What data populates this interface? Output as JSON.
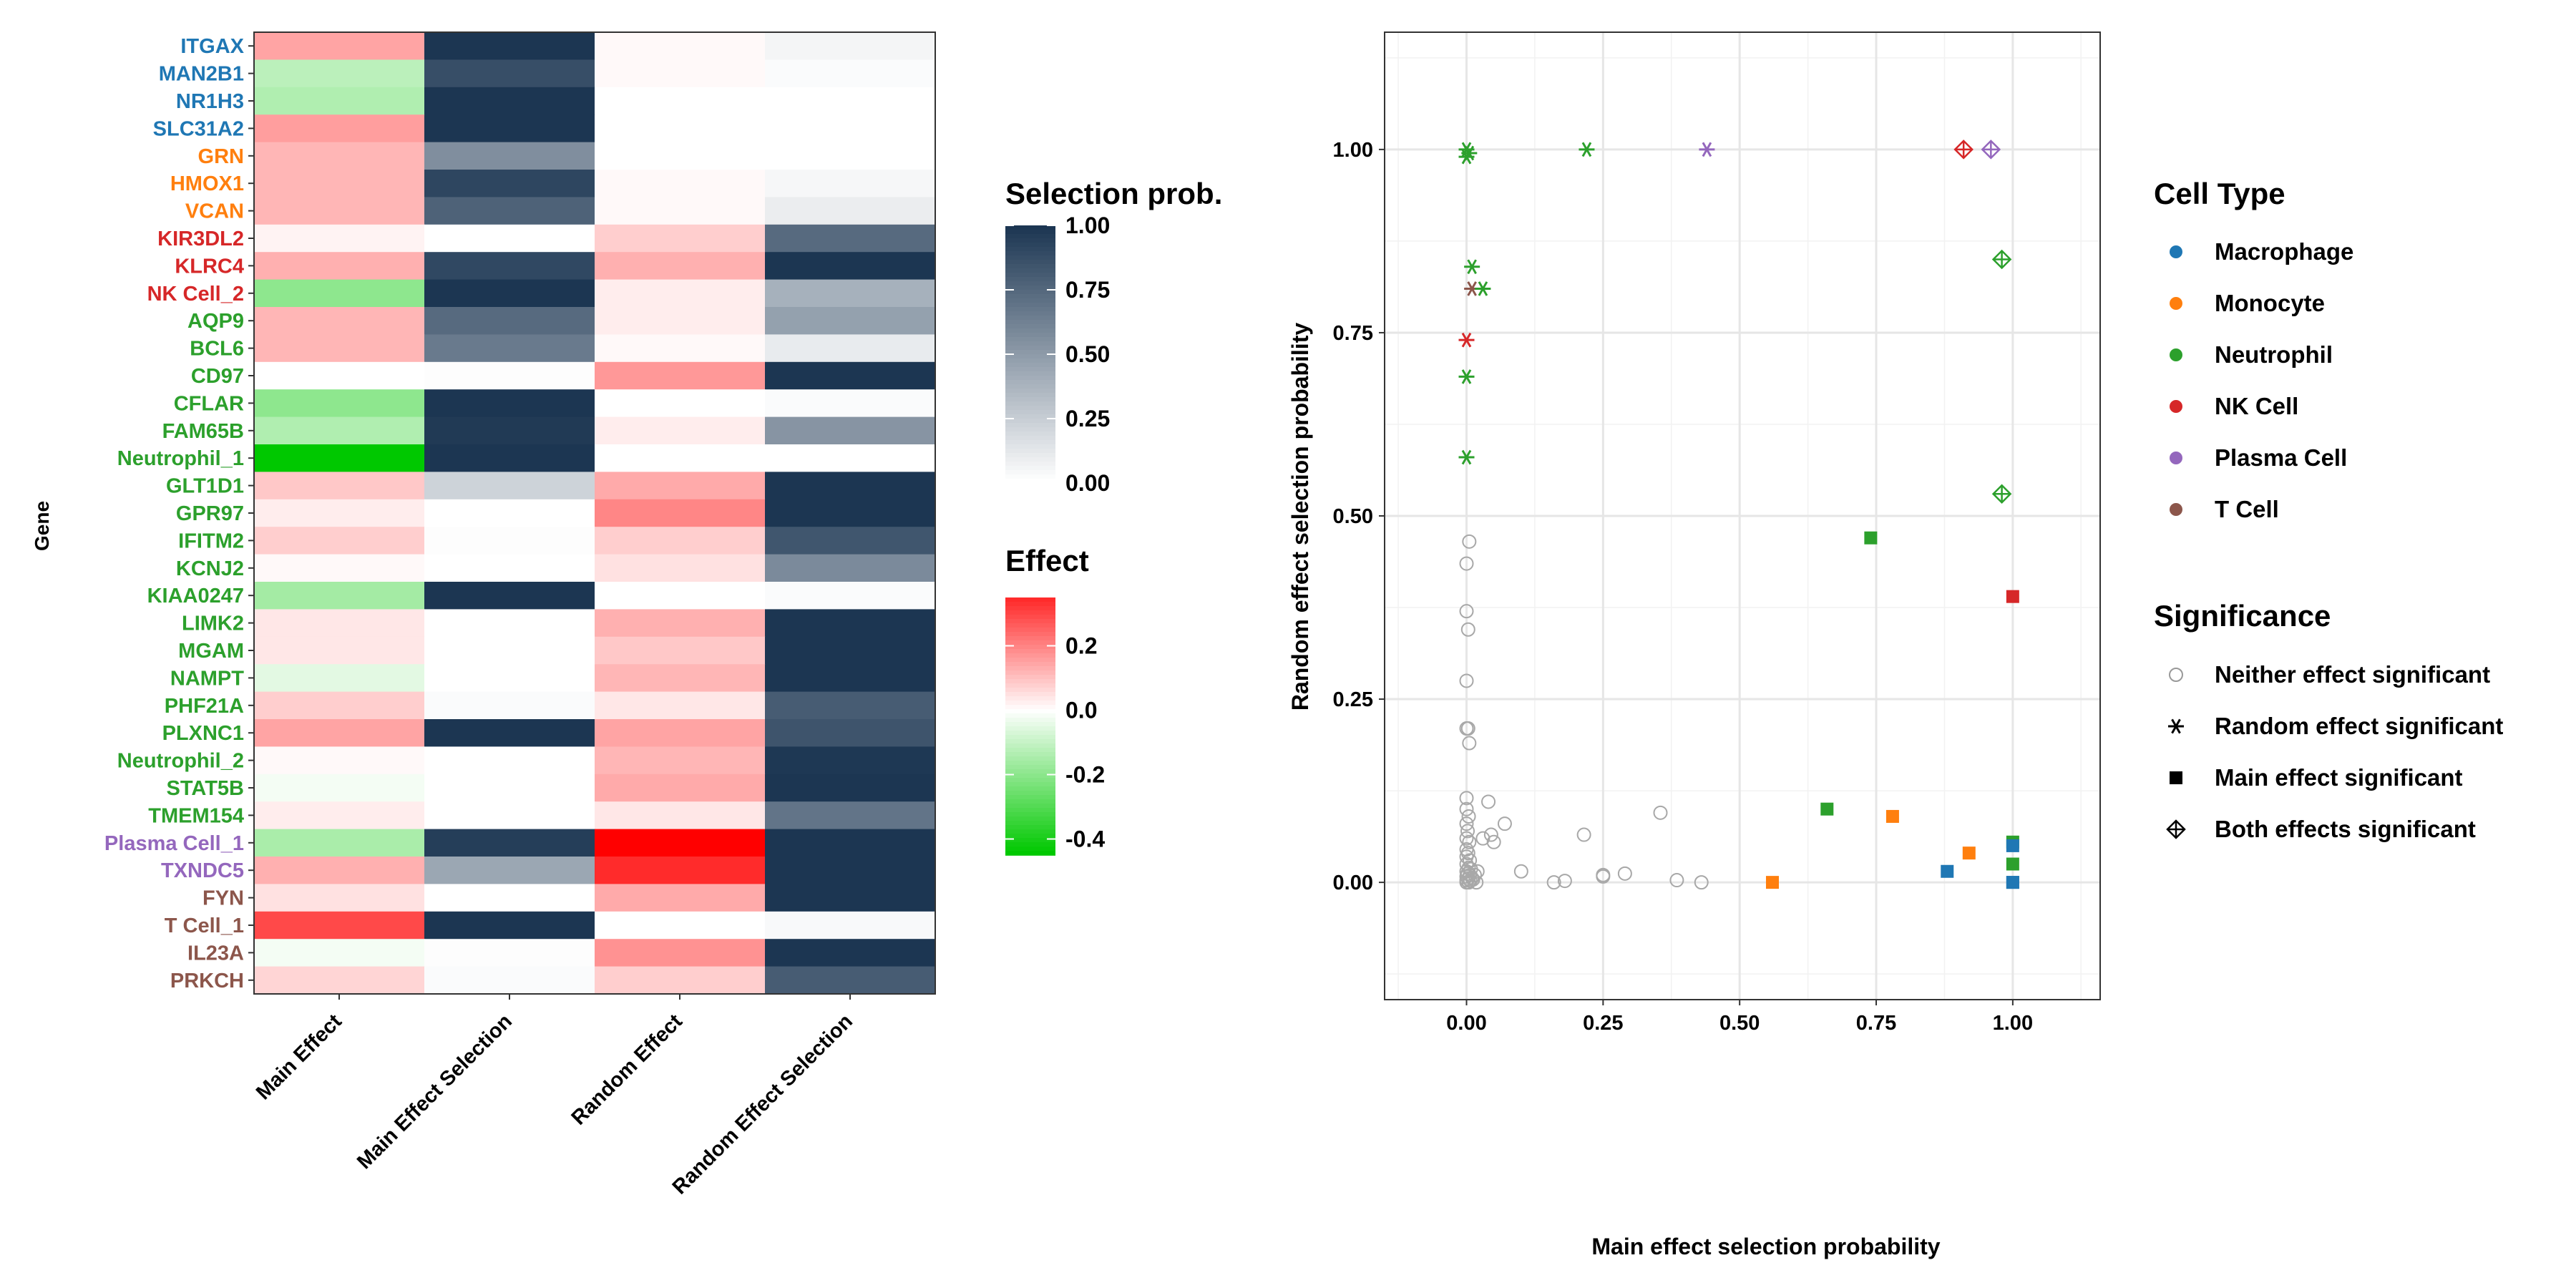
{
  "chart_data": [
    {
      "type": "heatmap",
      "ylabel": "Gene",
      "columns": [
        "Main Effect",
        "Main Effect Selection",
        "Random Effect",
        "Random Effect Selection"
      ],
      "rows": [
        {
          "gene": "ITGAX",
          "cell_type": "Macrophage",
          "main_effect": 0.15,
          "main_sel": 1.0,
          "rand_effect": 0.01,
          "rand_sel": 0.05
        },
        {
          "gene": "MAN2B1",
          "cell_type": "Macrophage",
          "main_effect": -0.12,
          "main_sel": 0.88,
          "rand_effect": 0.01,
          "rand_sel": 0.02
        },
        {
          "gene": "NR1H3",
          "cell_type": "Macrophage",
          "main_effect": -0.14,
          "main_sel": 1.0,
          "rand_effect": 0.0,
          "rand_sel": 0.0
        },
        {
          "gene": "SLC31A2",
          "cell_type": "Macrophage",
          "main_effect": 0.16,
          "main_sel": 1.0,
          "rand_effect": 0.0,
          "rand_sel": 0.0
        },
        {
          "gene": "GRN",
          "cell_type": "Monocyte",
          "main_effect": 0.12,
          "main_sel": 0.56,
          "rand_effect": 0.0,
          "rand_sel": 0.0
        },
        {
          "gene": "HMOX1",
          "cell_type": "Monocyte",
          "main_effect": 0.12,
          "main_sel": 0.92,
          "rand_effect": 0.01,
          "rand_sel": 0.04
        },
        {
          "gene": "VCAN",
          "cell_type": "Monocyte",
          "main_effect": 0.12,
          "main_sel": 0.78,
          "rand_effect": 0.01,
          "rand_sel": 0.09
        },
        {
          "gene": "KIR3DL2",
          "cell_type": "NK Cell",
          "main_effect": 0.02,
          "main_sel": 0.0,
          "rand_effect": 0.08,
          "rand_sel": 0.74
        },
        {
          "gene": "KLRC4",
          "cell_type": "NK Cell",
          "main_effect": 0.13,
          "main_sel": 0.91,
          "rand_effect": 0.13,
          "rand_sel": 1.0
        },
        {
          "gene": "NK Cell_2",
          "cell_type": "NK Cell",
          "main_effect": -0.2,
          "main_sel": 1.0,
          "rand_effect": 0.03,
          "rand_sel": 0.39
        },
        {
          "gene": "AQP9",
          "cell_type": "Neutrophil",
          "main_effect": 0.12,
          "main_sel": 0.74,
          "rand_effect": 0.03,
          "rand_sel": 0.47
        },
        {
          "gene": "BCL6",
          "cell_type": "Neutrophil",
          "main_effect": 0.12,
          "main_sel": 0.66,
          "rand_effect": 0.01,
          "rand_sel": 0.1
        },
        {
          "gene": "CD97",
          "cell_type": "Neutrophil",
          "main_effect": 0.0,
          "main_sel": 0.01,
          "rand_effect": 0.17,
          "rand_sel": 1.0
        },
        {
          "gene": "CFLAR",
          "cell_type": "Neutrophil",
          "main_effect": -0.2,
          "main_sel": 1.0,
          "rand_effect": 0.0,
          "rand_sel": 0.02
        },
        {
          "gene": "FAM65B",
          "cell_type": "Neutrophil",
          "main_effect": -0.14,
          "main_sel": 0.98,
          "rand_effect": 0.03,
          "rand_sel": 0.53
        },
        {
          "gene": "Neutrophil_1",
          "cell_type": "Neutrophil",
          "main_effect": -0.45,
          "main_sel": 1.0,
          "rand_effect": 0.0,
          "rand_sel": 0.0
        },
        {
          "gene": "GLT1D1",
          "cell_type": "Neutrophil",
          "main_effect": 0.09,
          "main_sel": 0.22,
          "rand_effect": 0.14,
          "rand_sel": 1.0
        },
        {
          "gene": "GPR97",
          "cell_type": "Neutrophil",
          "main_effect": 0.03,
          "main_sel": 0.0,
          "rand_effect": 0.2,
          "rand_sel": 1.0
        },
        {
          "gene": "IFITM2",
          "cell_type": "Neutrophil",
          "main_effect": 0.08,
          "main_sel": 0.01,
          "rand_effect": 0.08,
          "rand_sel": 0.84
        },
        {
          "gene": "KCNJ2",
          "cell_type": "Neutrophil",
          "main_effect": 0.01,
          "main_sel": 0.0,
          "rand_effect": 0.05,
          "rand_sel": 0.58
        },
        {
          "gene": "KIAA0247",
          "cell_type": "Neutrophil",
          "main_effect": -0.16,
          "main_sel": 1.0,
          "rand_effect": 0.0,
          "rand_sel": 0.02
        },
        {
          "gene": "LIMK2",
          "cell_type": "Neutrophil",
          "main_effect": 0.04,
          "main_sel": 0.0,
          "rand_effect": 0.13,
          "rand_sel": 1.0
        },
        {
          "gene": "MGAM",
          "cell_type": "Neutrophil",
          "main_effect": 0.04,
          "main_sel": 0.0,
          "rand_effect": 0.09,
          "rand_sel": 1.0
        },
        {
          "gene": "NAMPT",
          "cell_type": "Neutrophil",
          "main_effect": -0.05,
          "main_sel": 0.0,
          "rand_effect": 0.12,
          "rand_sel": 1.0
        },
        {
          "gene": "PHF21A",
          "cell_type": "Neutrophil",
          "main_effect": 0.08,
          "main_sel": 0.02,
          "rand_effect": 0.04,
          "rand_sel": 0.81
        },
        {
          "gene": "PLXNC1",
          "cell_type": "Neutrophil",
          "main_effect": 0.15,
          "main_sel": 1.0,
          "rand_effect": 0.15,
          "rand_sel": 0.85
        },
        {
          "gene": "Neutrophil_2",
          "cell_type": "Neutrophil",
          "main_effect": 0.01,
          "main_sel": 0.0,
          "rand_effect": 0.12,
          "rand_sel": 0.99
        },
        {
          "gene": "STAT5B",
          "cell_type": "Neutrophil",
          "main_effect": -0.02,
          "main_sel": 0.0,
          "rand_effect": 0.14,
          "rand_sel": 1.0
        },
        {
          "gene": "TMEM154",
          "cell_type": "Neutrophil",
          "main_effect": 0.03,
          "main_sel": 0.0,
          "rand_effect": 0.04,
          "rand_sel": 0.69
        },
        {
          "gene": "Plasma Cell_1",
          "cell_type": "Plasma Cell",
          "main_effect": -0.15,
          "main_sel": 0.96,
          "rand_effect": 0.42,
          "rand_sel": 1.0
        },
        {
          "gene": "TXNDC5",
          "cell_type": "Plasma Cell",
          "main_effect": 0.13,
          "main_sel": 0.44,
          "rand_effect": 0.35,
          "rand_sel": 1.0
        },
        {
          "gene": "FYN",
          "cell_type": "T Cell",
          "main_effect": 0.05,
          "main_sel": 0.0,
          "rand_effect": 0.14,
          "rand_sel": 1.0
        },
        {
          "gene": "T Cell_1",
          "cell_type": "T Cell",
          "main_effect": 0.3,
          "main_sel": 1.0,
          "rand_effect": 0.0,
          "rand_sel": 0.03
        },
        {
          "gene": "IL23A",
          "cell_type": "T Cell",
          "main_effect": -0.02,
          "main_sel": 0.01,
          "rand_effect": 0.18,
          "rand_sel": 1.0
        },
        {
          "gene": "PRKCH",
          "cell_type": "T Cell",
          "main_effect": 0.07,
          "main_sel": 0.02,
          "rand_effect": 0.08,
          "rand_sel": 0.81
        }
      ],
      "legends": {
        "selection": {
          "title": "Selection prob.",
          "ticks": [
            "1.00",
            "0.75",
            "0.50",
            "0.25",
            "0.00"
          ],
          "range": [
            0,
            1
          ]
        },
        "effect": {
          "title": "Effect",
          "ticks": [
            "0.2",
            "0.0",
            "-0.2",
            "-0.4"
          ],
          "range": [
            -0.45,
            0.35
          ]
        }
      }
    },
    {
      "type": "scatter",
      "xlabel": "Main effect selection probability",
      "ylabel": "Random effect selection probability",
      "xlim": [
        -0.15,
        1.16
      ],
      "ylim": [
        -0.16,
        1.16
      ],
      "xticks": [
        "0.00",
        "0.25",
        "0.50",
        "0.75",
        "1.00"
      ],
      "yticks": [
        "0.00",
        "0.25",
        "0.50",
        "0.75",
        "1.00"
      ],
      "legend_celltype_title": "Cell Type",
      "legend_sig_title": "Significance",
      "cell_types": [
        "Macrophage",
        "Monocyte",
        "Neutrophil",
        "NK Cell",
        "Plasma Cell",
        "T Cell"
      ],
      "significance_levels": [
        "Neither effect significant",
        "Random effect significant",
        "Main effect significant",
        "Both effects significant"
      ],
      "colored_points": [
        {
          "x": 0.0,
          "y": 1.0,
          "cell": "Neutrophil",
          "sig": "Random effect significant"
        },
        {
          "x": 0.0,
          "y": 0.99,
          "cell": "Neutrophil",
          "sig": "Random effect significant"
        },
        {
          "x": 0.005,
          "y": 0.995,
          "cell": "Neutrophil",
          "sig": "Random effect significant"
        },
        {
          "x": 0.01,
          "y": 0.84,
          "cell": "Neutrophil",
          "sig": "Random effect significant"
        },
        {
          "x": 0.01,
          "y": 0.81,
          "cell": "T Cell",
          "sig": "Random effect significant"
        },
        {
          "x": 0.03,
          "y": 0.81,
          "cell": "Neutrophil",
          "sig": "Random effect significant"
        },
        {
          "x": 0.0,
          "y": 0.74,
          "cell": "NK Cell",
          "sig": "Random effect significant"
        },
        {
          "x": 0.0,
          "y": 0.69,
          "cell": "Neutrophil",
          "sig": "Random effect significant"
        },
        {
          "x": 0.0,
          "y": 0.58,
          "cell": "Neutrophil",
          "sig": "Random effect significant"
        },
        {
          "x": 0.22,
          "y": 1.0,
          "cell": "Neutrophil",
          "sig": "Random effect significant"
        },
        {
          "x": 0.44,
          "y": 1.0,
          "cell": "Plasma Cell",
          "sig": "Random effect significant"
        },
        {
          "x": 0.91,
          "y": 1.0,
          "cell": "NK Cell",
          "sig": "Both effects significant"
        },
        {
          "x": 0.96,
          "y": 1.0,
          "cell": "Plasma Cell",
          "sig": "Both effects significant"
        },
        {
          "x": 0.98,
          "y": 0.85,
          "cell": "Neutrophil",
          "sig": "Both effects significant"
        },
        {
          "x": 0.98,
          "y": 0.53,
          "cell": "Neutrophil",
          "sig": "Both effects significant"
        },
        {
          "x": 0.74,
          "y": 0.47,
          "cell": "Neutrophil",
          "sig": "Main effect significant"
        },
        {
          "x": 1.0,
          "y": 0.39,
          "cell": "NK Cell",
          "sig": "Main effect significant"
        },
        {
          "x": 0.66,
          "y": 0.1,
          "cell": "Neutrophil",
          "sig": "Main effect significant"
        },
        {
          "x": 0.78,
          "y": 0.09,
          "cell": "Monocyte",
          "sig": "Main effect significant"
        },
        {
          "x": 0.92,
          "y": 0.04,
          "cell": "Monocyte",
          "sig": "Main effect significant"
        },
        {
          "x": 0.56,
          "y": 0.0,
          "cell": "Monocyte",
          "sig": "Main effect significant"
        },
        {
          "x": 0.88,
          "y": 0.015,
          "cell": "Macrophage",
          "sig": "Main effect significant"
        },
        {
          "x": 1.0,
          "y": 0.055,
          "cell": "Neutrophil",
          "sig": "Main effect significant"
        },
        {
          "x": 1.0,
          "y": 0.05,
          "cell": "Macrophage",
          "sig": "Main effect significant"
        },
        {
          "x": 1.0,
          "y": 0.025,
          "cell": "Neutrophil",
          "sig": "Main effect significant"
        },
        {
          "x": 1.0,
          "y": 0.0,
          "cell": "Macrophage",
          "sig": "Main effect significant"
        },
        {
          "x": 1.0,
          "y": 0.0,
          "cell": "Macrophage",
          "sig": "Main effect significant"
        }
      ],
      "gray_points": [
        [
          0.005,
          0.465
        ],
        [
          0.0,
          0.435
        ],
        [
          0.0,
          0.37
        ],
        [
          0.003,
          0.345
        ],
        [
          0.0,
          0.275
        ],
        [
          0.0,
          0.21
        ],
        [
          0.003,
          0.21
        ],
        [
          0.005,
          0.19
        ],
        [
          0.0,
          0.115
        ],
        [
          0.0,
          0.1
        ],
        [
          0.004,
          0.09
        ],
        [
          0.0,
          0.08
        ],
        [
          0.002,
          0.07
        ],
        [
          0.0,
          0.06
        ],
        [
          0.005,
          0.055
        ],
        [
          0.0,
          0.045
        ],
        [
          0.003,
          0.04
        ],
        [
          0.0,
          0.035
        ],
        [
          0.006,
          0.03
        ],
        [
          0.0,
          0.025
        ],
        [
          0.004,
          0.02
        ],
        [
          0.008,
          0.018
        ],
        [
          0.0,
          0.015
        ],
        [
          0.002,
          0.012
        ],
        [
          0.006,
          0.01
        ],
        [
          0.0,
          0.008
        ],
        [
          0.01,
          0.006
        ],
        [
          0.003,
          0.005
        ],
        [
          0.0,
          0.003
        ],
        [
          0.012,
          0.004
        ],
        [
          0.007,
          0.002
        ],
        [
          0.0,
          0.0
        ],
        [
          0.004,
          0.0
        ],
        [
          0.015,
          0.01
        ],
        [
          0.018,
          0.0
        ],
        [
          0.02,
          0.015
        ],
        [
          0.04,
          0.11
        ],
        [
          0.07,
          0.08
        ],
        [
          0.03,
          0.06
        ],
        [
          0.045,
          0.065
        ],
        [
          0.05,
          0.055
        ],
        [
          0.1,
          0.015
        ],
        [
          0.16,
          0.0
        ],
        [
          0.18,
          0.002
        ],
        [
          0.215,
          0.065
        ],
        [
          0.25,
          0.01
        ],
        [
          0.25,
          0.008
        ],
        [
          0.29,
          0.012
        ],
        [
          0.355,
          0.095
        ],
        [
          0.385,
          0.003
        ],
        [
          0.43,
          0.0
        ]
      ]
    }
  ]
}
